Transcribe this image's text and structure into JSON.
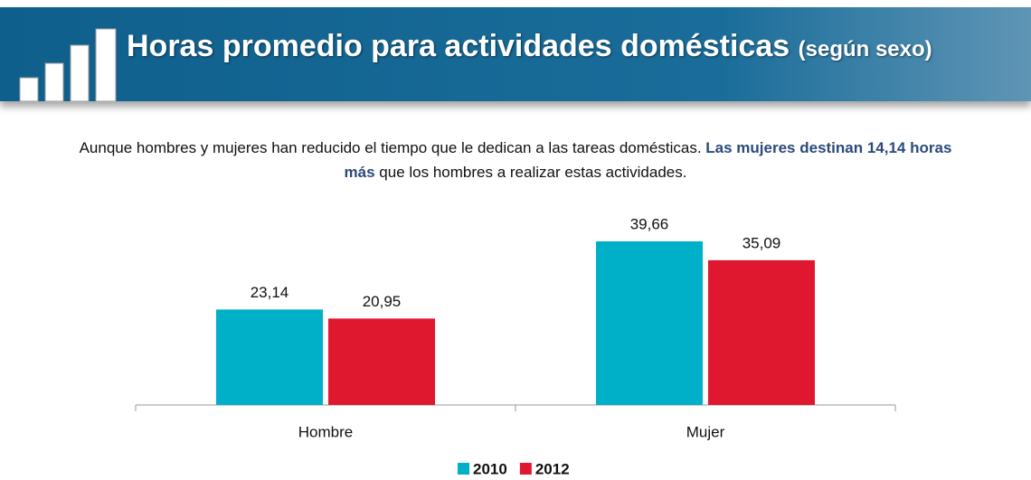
{
  "chart_data": {
    "type": "bar",
    "title": "Horas promedio para actividades domésticas",
    "title_note": "(según sexo)",
    "subtitle": [
      "Aunque hombres y mujeres han reducido el tiempo que le dedican a las tareas domésticas. ",
      "Las mujeres destinan 14,14 horas más",
      " que los hombres a realizar estas actividades."
    ],
    "categories": [
      "Hombre",
      "Mujer"
    ],
    "series": [
      {
        "name": "2010",
        "color": "#00b0c8",
        "values": [
          23.14,
          39.66
        ],
        "value_labels": [
          "23,14",
          "39,66"
        ]
      },
      {
        "name": "2012",
        "color": "#e0182f",
        "values": [
          20.95,
          35.09
        ],
        "value_labels": [
          "20,95",
          "35,09"
        ]
      }
    ],
    "legend": "bottom"
  }
}
